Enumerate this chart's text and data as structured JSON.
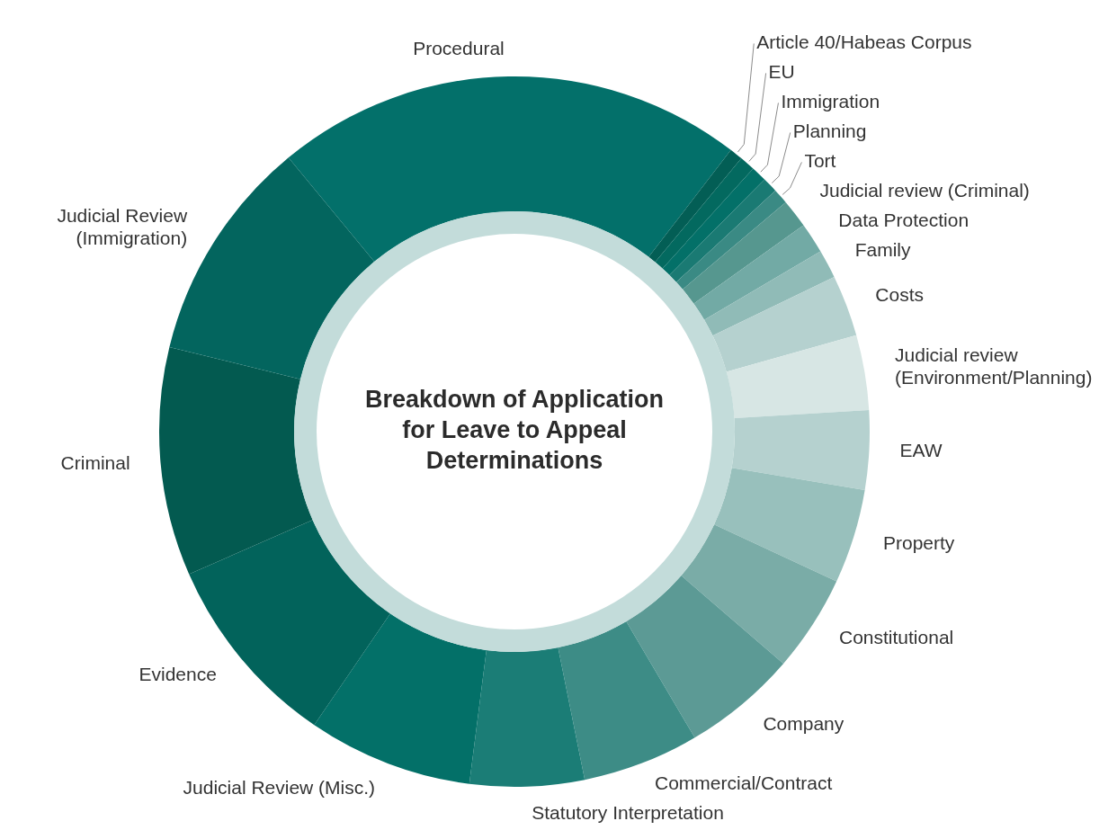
{
  "chart_data": {
    "type": "donut",
    "title": "Breakdown of Application for Leave to Appeal Determinations",
    "categories": [
      "Procedural",
      "Article 40/Habeas Corpus",
      "EU",
      "Immigration",
      "Planning",
      "Tort",
      "Judicial review (Criminal)",
      "Data Protection",
      "Family",
      "Costs",
      "Judicial review (Environment/Planning)",
      "EAW",
      "Property",
      "Constitutional",
      "Company",
      "Commercial/Contract",
      "Statutory Interpretation",
      "Judicial Review (Misc.)",
      "Evidence",
      "Criminal",
      "Judicial Review (Immigration)"
    ],
    "values": [
      21.4,
      0.6,
      0.7,
      0.7,
      0.7,
      0.7,
      1.3,
      1.4,
      1.3,
      2.8,
      3.4,
      3.6,
      4.3,
      4.4,
      5.2,
      5.3,
      5.2,
      7.5,
      8.9,
      10.4,
      10.2
    ],
    "colors": [
      "#03706a",
      "#035e55",
      "#03695f",
      "#037068",
      "#1a7a73",
      "#3a8a84",
      "#56978f",
      "#72aaa5",
      "#90bbb7",
      "#b5d1cf",
      "#d7e6e4",
      "#b5d1cf",
      "#98c0bc",
      "#7aaca7",
      "#5c9a95",
      "#3d8c86",
      "#1b7d76",
      "#037068",
      "#02635b",
      "#035a50",
      "#03655e"
    ],
    "legend": false
  }
}
